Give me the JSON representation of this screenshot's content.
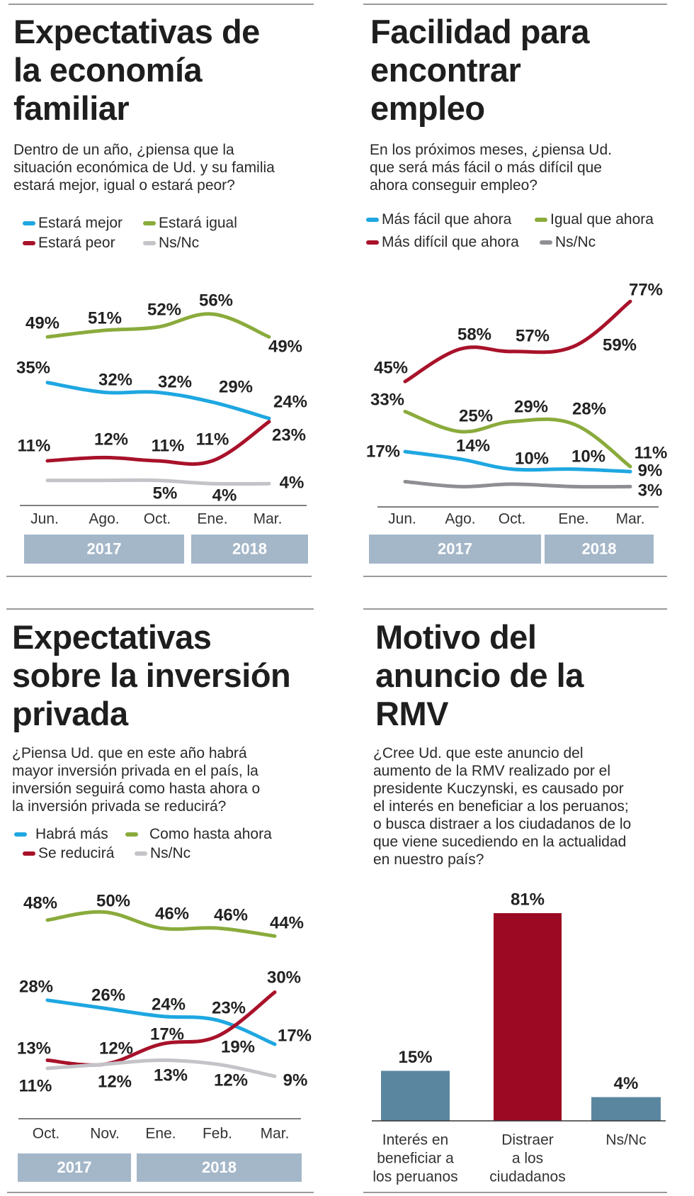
{
  "colors": {
    "blue": "#1ea7e1",
    "green": "#8aab3c",
    "red": "#a8122a",
    "gray_light": "#c3c3c8",
    "gray_dark": "#8e8e93",
    "year_bar": "#a4b7c9",
    "bar_blue": "#5b86a0",
    "bar_red": "#9b0a22"
  },
  "panels": [
    {
      "title": [
        "Expectativas de",
        "la economía",
        "familiar"
      ],
      "subtitle": [
        "Dentro de un año, ¿piensa que la",
        "situación económica de Ud. y su familia",
        "estará mejor, igual o estará peor?"
      ],
      "legend": [
        "Estará mejor",
        "Estará igual",
        "Estará peor",
        "Ns/Nc"
      ]
    },
    {
      "title": [
        "Facilidad para",
        "encontrar",
        "empleo"
      ],
      "subtitle": [
        "En los próximos meses, ¿piensa Ud.",
        "que será más fácil o más difícil que",
        "ahora conseguir empleo?"
      ],
      "legend": [
        "Más fácil que ahora",
        "Igual que ahora",
        "Más difícil que ahora",
        "Ns/Nc"
      ]
    },
    {
      "title": [
        "Expectativas",
        "sobre la inversión",
        "privada"
      ],
      "subtitle": [
        "¿Piensa Ud. que en este año habrá",
        "mayor inversión privada en el país, la",
        "inversión seguirá como hasta ahora o",
        "la inversión privada se reducirá?"
      ],
      "legend": [
        "Habrá más",
        "Como hasta ahora",
        "Se reducirá",
        "Ns/Nc"
      ]
    },
    {
      "title": [
        "Motivo del",
        "anuncio de la",
        "RMV"
      ],
      "subtitle": [
        "¿Cree Ud. que este anuncio del",
        "aumento de la RMV realizado por el",
        "presidente Kuczynski, es causado por",
        "el interés en beneficiar a los peruanos;",
        "o busca distraer a los ciudadanos de lo",
        "que viene sucediendo en la actualidad",
        "en nuestro país?"
      ]
    }
  ],
  "chart_data": [
    {
      "type": "line",
      "categories": [
        "Jun.",
        "Ago.",
        "Oct.",
        "Ene.",
        "Mar."
      ],
      "years": [
        {
          "label": "2017",
          "months": 3
        },
        {
          "label": "2018",
          "months": 2
        }
      ],
      "series": [
        {
          "name": "Estará igual",
          "color": "#8aab3c",
          "values": [
            49,
            51,
            52,
            56,
            49
          ],
          "labels": [
            "49%",
            "51%",
            "52%",
            "56%",
            "49%"
          ]
        },
        {
          "name": "Estará mejor",
          "color": "#1ea7e1",
          "values": [
            35,
            32,
            32,
            29,
            24
          ],
          "labels": [
            "35%",
            "32%",
            "32%",
            "29%",
            "24%"
          ]
        },
        {
          "name": "Estará peor",
          "color": "#a8122a",
          "values": [
            11,
            12,
            11,
            11,
            23
          ],
          "labels": [
            "11%",
            "12%",
            "11%",
            "11%",
            "23%"
          ]
        },
        {
          "name": "Ns/Nc",
          "color": "#c3c3c8",
          "values": [
            5,
            5,
            5,
            4,
            4
          ],
          "labels": [
            null,
            null,
            "5%",
            "4%",
            "4%"
          ]
        }
      ]
    },
    {
      "type": "line",
      "categories": [
        "Jun.",
        "Ago.",
        "Oct.",
        "Ene.",
        "Mar."
      ],
      "years": [
        {
          "label": "2017",
          "months": 3
        },
        {
          "label": "2018",
          "months": 2
        }
      ],
      "series": [
        {
          "name": "Más difícil que ahora",
          "color": "#a8122a",
          "values": [
            45,
            58,
            57,
            59,
            77
          ],
          "labels": [
            "45%",
            "58%",
            "57%",
            "59%",
            "77%"
          ]
        },
        {
          "name": "Igual que ahora",
          "color": "#8aab3c",
          "values": [
            33,
            25,
            29,
            28,
            11
          ],
          "labels": [
            "33%",
            "25%",
            "29%",
            "28%",
            "11%"
          ]
        },
        {
          "name": "Más fácil que ahora",
          "color": "#1ea7e1",
          "values": [
            17,
            14,
            10,
            10,
            9
          ],
          "labels": [
            "17%",
            "14%",
            "10%",
            "10%",
            "9%"
          ]
        },
        {
          "name": "Ns/Nc",
          "color": "#8e8e93",
          "values": [
            5,
            3,
            4,
            3,
            3
          ],
          "labels": [
            null,
            null,
            null,
            null,
            "3%"
          ]
        }
      ]
    },
    {
      "type": "line",
      "categories": [
        "Oct.",
        "Nov.",
        "Ene.",
        "Feb.",
        "Mar."
      ],
      "years": [
        {
          "label": "2017",
          "months": 2
        },
        {
          "label": "2018",
          "months": 3
        }
      ],
      "series": [
        {
          "name": "Como hasta ahora",
          "color": "#8aab3c",
          "values": [
            48,
            50,
            46,
            46,
            44
          ],
          "labels": [
            "48%",
            "50%",
            "46%",
            "46%",
            "44%"
          ]
        },
        {
          "name": "Habrá más",
          "color": "#1ea7e1",
          "values": [
            28,
            26,
            24,
            23,
            17
          ],
          "labels": [
            "28%",
            "26%",
            "24%",
            "23%",
            "17%"
          ]
        },
        {
          "name": "Se reducirá",
          "color": "#a8122a",
          "values": [
            13,
            12,
            17,
            19,
            30
          ],
          "labels": [
            "13%",
            "12%",
            "17%",
            "19%",
            "30%"
          ]
        },
        {
          "name": "Ns/Nc",
          "color": "#c3c3c8",
          "values": [
            11,
            12,
            13,
            12,
            9
          ],
          "labels": [
            "11%",
            "12%",
            "13%",
            "12%",
            "9%"
          ]
        }
      ]
    },
    {
      "type": "bar",
      "categories": [
        [
          "Interés en",
          "beneficiar a",
          "los peruanos"
        ],
        [
          "Distraer",
          "a los",
          "ciudadanos"
        ],
        [
          "Ns/Nc"
        ]
      ],
      "values": [
        15,
        81,
        4
      ],
      "labels": [
        "15%",
        "81%",
        "4%"
      ],
      "colors": [
        "#5b86a0",
        "#9b0a22",
        "#5b86a0"
      ]
    }
  ]
}
